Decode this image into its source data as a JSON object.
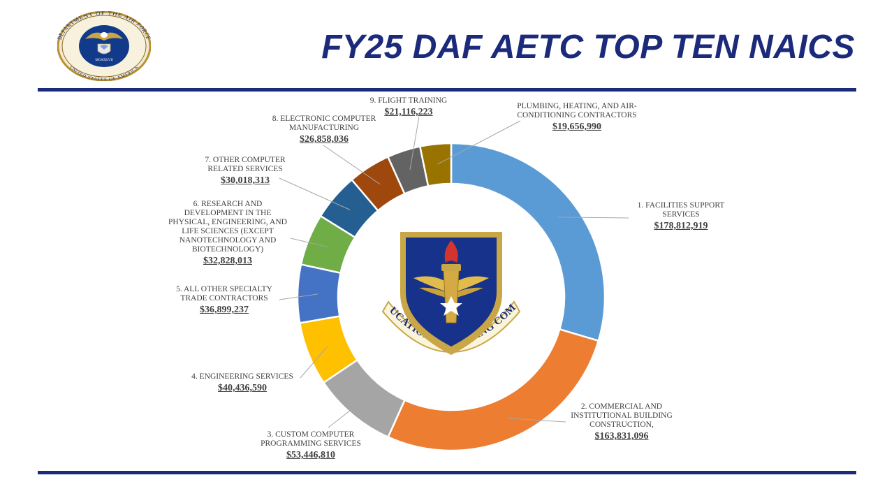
{
  "title": "FY25 DAF AETC TOP TEN NAICS",
  "seal": {
    "ring_text_top": "DEPARTMENT OF THE AIR FORCE",
    "ring_text_bottom": "UNITED STATES OF AMERICA",
    "year": "MCMXLVII"
  },
  "center_emblem": {
    "text": "AIR EDUCATION & TRAINING COMMAND"
  },
  "colors": {
    "title": "#1b2a7a",
    "rule": "#1b2a7a",
    "label_text": "#404040"
  },
  "chart_data": {
    "type": "pie",
    "variant": "doughnut",
    "legend": "none",
    "labels_with_leader_lines": true,
    "slices": [
      {
        "label": "1. FACILITIES SUPPORT SERVICES",
        "amount": "$178,812,919",
        "value": 178812919,
        "color": "#5b9bd5"
      },
      {
        "label": "2. COMMERCIAL AND INSTITUTIONAL BUILDING CONSTRUCTION,",
        "amount": "$163,831,096",
        "value": 163831096,
        "color": "#ed7d31"
      },
      {
        "label": "3. CUSTOM COMPUTER PROGRAMMING SERVICES",
        "amount": "$53,446,810",
        "value": 53446810,
        "color": "#a5a5a5"
      },
      {
        "label": "4. ENGINEERING SERVICES",
        "amount": "$40,436,590",
        "value": 40436590,
        "color": "#ffc000"
      },
      {
        "label": "5. ALL OTHER SPECIALTY TRADE CONTRACTORS",
        "amount": "$36,899,237",
        "value": 36899237,
        "color": "#4472c4"
      },
      {
        "label": "6. RESEARCH AND DEVELOPMENT IN THE PHYSICAL, ENGINEERING, AND LIFE SCIENCES (EXCEPT NANOTECHNOLOGY AND BIOTECHNOLOGY)",
        "amount": "$32,828,013",
        "value": 32828013,
        "color": "#70ad47"
      },
      {
        "label": "7. OTHER COMPUTER RELATED SERVICES",
        "amount": "$30,018,313",
        "value": 30018313,
        "color": "#255e91"
      },
      {
        "label": "8. ELECTRONIC COMPUTER MANUFACTURING",
        "amount": "$26,858,036",
        "value": 26858036,
        "color": "#9e480e"
      },
      {
        "label": "9. FLIGHT TRAINING",
        "amount": "$21,116,223",
        "value": 21116223,
        "color": "#636363"
      },
      {
        "label": "PLUMBING, HEATING, AND AIR-CONDITIONING CONTRACTORS",
        "amount": "$19,656,990",
        "value": 19656990,
        "color": "#997300"
      }
    ]
  }
}
